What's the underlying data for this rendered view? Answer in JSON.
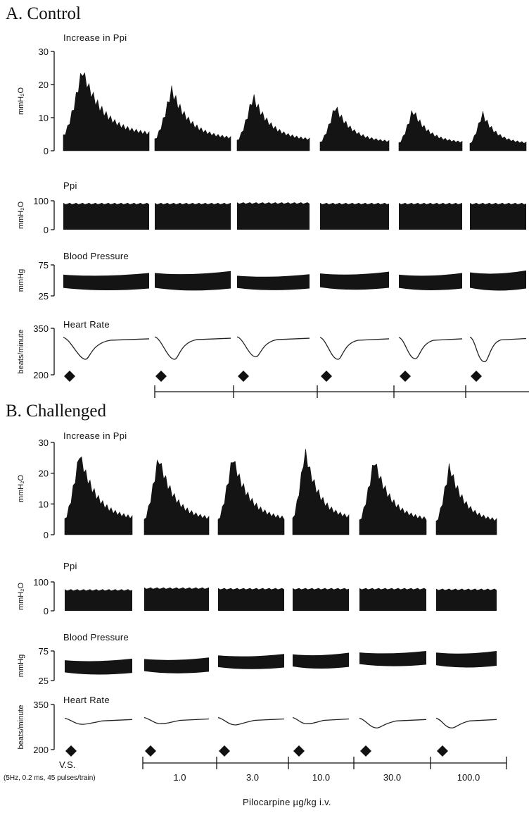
{
  "panels": [
    {
      "title": "A. Control",
      "increase_label": "Increase in Ppi",
      "ppi_label": "Ppi",
      "bp_label": "Blood Pressure",
      "hr_label": "Heart Rate"
    },
    {
      "title": "B. Challenged",
      "increase_label": "Increase in Ppi",
      "ppi_label": "Ppi",
      "bp_label": "Blood Pressure",
      "hr_label": "Heart Rate"
    }
  ],
  "units": {
    "increase": "mmH2O",
    "ppi": "mmH2O",
    "bp": "mmHg",
    "hr": "beats/minute"
  },
  "ticks": {
    "increase": [
      "0",
      "10",
      "20",
      "30"
    ],
    "ppi": [
      "0",
      "100"
    ],
    "bp": [
      "25",
      "75"
    ],
    "hr": [
      "200",
      "350"
    ]
  },
  "x_axis": {
    "vs_label": "V.S.",
    "stim_label": "(5Hz, 0.2 ms, 45 pulses/train)",
    "dose_labels": [
      "1.0",
      "3.0",
      "10.0",
      "30.0",
      "100.0"
    ],
    "title": "Pilocarpine µg/kg i.v."
  },
  "colors": {
    "ink": "#111111",
    "fill": "#141414"
  },
  "chart_data": [
    {
      "panel": "A. Control",
      "type": "area",
      "conditions": [
        "V.S.",
        "1.0",
        "3.0",
        "10.0",
        "30.0",
        "100.0"
      ],
      "increase_in_ppi_peak_mmH2O": [
        24,
        18,
        16,
        13,
        12,
        11
      ],
      "ppi_mmH2O": [
        90,
        90,
        92,
        90,
        90,
        90
      ],
      "blood_pressure_mmHg": [
        {
          "low": 37,
          "high": 62
        },
        {
          "low": 37,
          "high": 65
        },
        {
          "low": 37,
          "high": 60
        },
        {
          "low": 38,
          "high": 64
        },
        {
          "low": 37,
          "high": 62
        },
        {
          "low": 37,
          "high": 66
        }
      ],
      "heart_rate_baseline_bpm": [
        316,
        318,
        318,
        316,
        316,
        317
      ],
      "heart_rate_min_bpm": [
        250,
        250,
        258,
        250,
        252,
        242
      ],
      "ylim_increase": [
        0,
        30
      ],
      "ylim_ppi": [
        0,
        100
      ],
      "ylim_bp": [
        25,
        75
      ],
      "ylim_hr": [
        200,
        350
      ]
    },
    {
      "panel": "B. Challenged",
      "type": "area",
      "conditions": [
        "V.S.",
        "1.0",
        "3.0",
        "10.0",
        "30.0",
        "100.0"
      ],
      "increase_in_ppi_peak_mmH2O": [
        26,
        25,
        25,
        27,
        24,
        22
      ],
      "ppi_mmH2O": [
        72,
        78,
        76,
        76,
        76,
        74
      ],
      "blood_pressure_mmHg": [
        {
          "low": 38,
          "high": 62
        },
        {
          "low": 40,
          "high": 64
        },
        {
          "low": 47,
          "high": 70
        },
        {
          "low": 48,
          "high": 72
        },
        {
          "low": 52,
          "high": 75
        },
        {
          "low": 50,
          "high": 75
        }
      ],
      "heart_rate_baseline_bpm": [
        300,
        302,
        302,
        302,
        300,
        300
      ],
      "heart_rate_min_bpm": [
        284,
        286,
        282,
        286,
        272,
        272
      ],
      "ylim_increase": [
        0,
        30
      ],
      "ylim_ppi": [
        0,
        100
      ],
      "ylim_bp": [
        25,
        75
      ],
      "ylim_hr": [
        200,
        350
      ]
    }
  ]
}
